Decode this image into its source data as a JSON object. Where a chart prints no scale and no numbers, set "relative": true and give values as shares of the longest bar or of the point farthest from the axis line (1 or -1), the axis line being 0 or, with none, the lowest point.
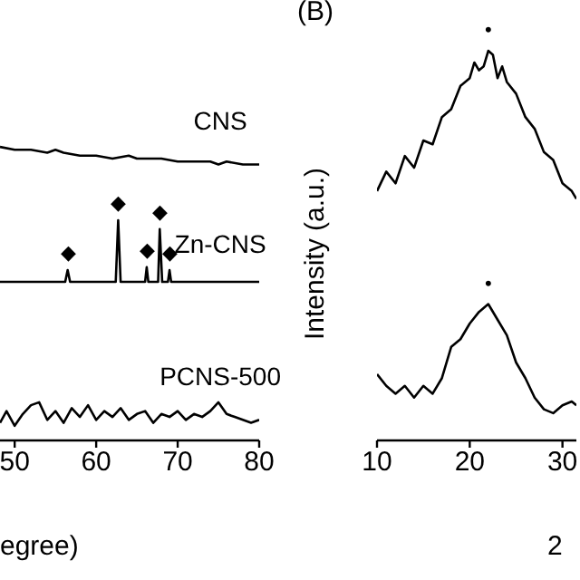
{
  "chart_data": [
    {
      "type": "line",
      "relative": true,
      "xlabel": "egree)",
      "xlim": [
        48.2,
        80
      ],
      "xticks": [
        50,
        60,
        70,
        80
      ],
      "series": [
        {
          "name": "CNS",
          "color": "#000000",
          "x": [
            48.2,
            50,
            52,
            54,
            55,
            56,
            58,
            60,
            62,
            64,
            65,
            66,
            68,
            70,
            72,
            74,
            75,
            76,
            78,
            80
          ],
          "values": [
            1.0,
            0.99,
            0.99,
            0.98,
            0.99,
            0.98,
            0.97,
            0.97,
            0.96,
            0.97,
            0.96,
            0.96,
            0.96,
            0.95,
            0.95,
            0.95,
            0.94,
            0.95,
            0.94,
            0.94
          ]
        },
        {
          "name": "Zn-CNS",
          "color": "#000000",
          "x": [
            48.2,
            56.2,
            56.5,
            56.8,
            62.4,
            62.7,
            63,
            66,
            66.2,
            66.4,
            67.6,
            67.8,
            68.1,
            68.8,
            69,
            69.2,
            80
          ],
          "values": [
            0.54,
            0.54,
            0.58,
            0.54,
            0.54,
            0.75,
            0.54,
            0.54,
            0.59,
            0.54,
            0.54,
            0.72,
            0.54,
            0.54,
            0.58,
            0.54,
            0.54
          ]
        },
        {
          "name": "PCNS-500",
          "color": "#000000",
          "x": [
            48.2,
            49,
            50,
            51,
            52,
            53,
            54,
            55,
            56,
            57,
            58,
            59,
            60,
            61,
            62,
            63,
            64,
            65,
            66,
            67,
            68,
            69,
            70,
            71,
            72,
            73,
            74,
            75,
            76,
            77,
            78,
            79,
            80
          ],
          "values": [
            0.06,
            0.1,
            0.05,
            0.09,
            0.12,
            0.13,
            0.07,
            0.1,
            0.06,
            0.11,
            0.08,
            0.12,
            0.07,
            0.1,
            0.08,
            0.11,
            0.07,
            0.09,
            0.1,
            0.06,
            0.09,
            0.08,
            0.1,
            0.07,
            0.09,
            0.08,
            0.1,
            0.13,
            0.09,
            0.08,
            0.07,
            0.06,
            0.07
          ]
        }
      ],
      "annotations": [
        {
          "text": "◆",
          "x": 56.5,
          "y": 0.58
        },
        {
          "text": "◆",
          "x": 62.7,
          "y": 0.75
        },
        {
          "text": "◆",
          "x": 66.2,
          "y": 0.59
        },
        {
          "text": "◆",
          "x": 67.8,
          "y": 0.72
        },
        {
          "text": "◆",
          "x": 69,
          "y": 0.58
        }
      ]
    },
    {
      "type": "line",
      "relative": true,
      "title": "(B)",
      "ylabel": "Intensity (a.u.)",
      "xlabel": "2",
      "xlim": [
        10,
        31.5
      ],
      "xticks": [
        10,
        20,
        30
      ],
      "series": [
        {
          "color": "#000000",
          "x": [
            10,
            11,
            12,
            13,
            14,
            15,
            16,
            17,
            18,
            19,
            20,
            20.5,
            21,
            21.5,
            22,
            22.5,
            23,
            23.5,
            24,
            25,
            26,
            27,
            28,
            29,
            30,
            31,
            31.5
          ],
          "values": [
            0.64,
            0.69,
            0.66,
            0.73,
            0.7,
            0.77,
            0.76,
            0.83,
            0.85,
            0.91,
            0.93,
            0.97,
            0.95,
            0.96,
            1.0,
            0.99,
            0.93,
            0.96,
            0.92,
            0.89,
            0.83,
            0.8,
            0.74,
            0.72,
            0.66,
            0.64,
            0.62
          ]
        },
        {
          "color": "#000000",
          "x": [
            10,
            11,
            12,
            13,
            14,
            15,
            16,
            17,
            18,
            19,
            20,
            21,
            22,
            23,
            24,
            25,
            26,
            27,
            28,
            29,
            30,
            31,
            31.5
          ],
          "values": [
            0.17,
            0.14,
            0.12,
            0.14,
            0.11,
            0.14,
            0.12,
            0.16,
            0.24,
            0.26,
            0.3,
            0.33,
            0.35,
            0.31,
            0.27,
            0.2,
            0.16,
            0.11,
            0.08,
            0.07,
            0.09,
            0.1,
            0.09
          ]
        }
      ],
      "annotations": [
        {
          "text": "•",
          "x": 22,
          "y": 1.0
        },
        {
          "text": "•",
          "x": 22,
          "y": 0.35
        }
      ]
    }
  ]
}
